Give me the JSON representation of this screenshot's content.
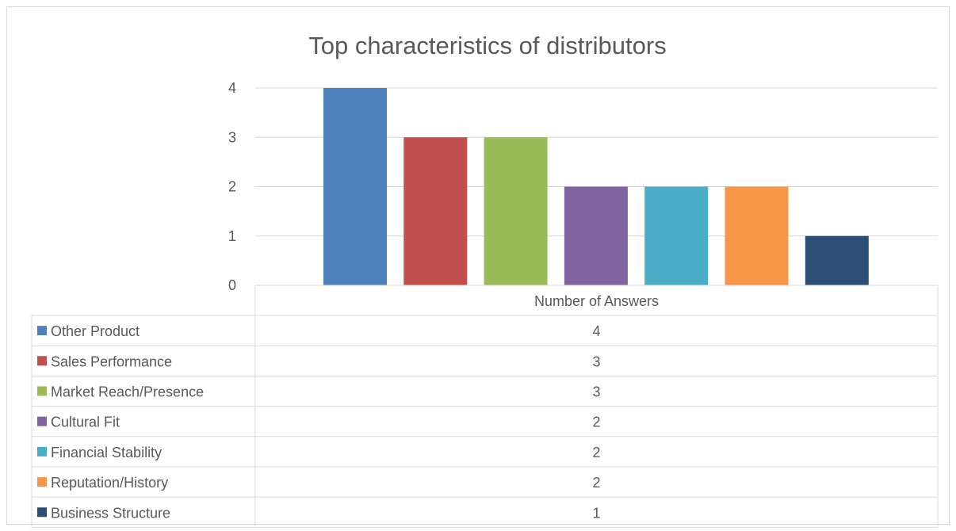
{
  "chart_data": {
    "type": "bar",
    "title": "Top characteristics of distributors",
    "xlabel": "",
    "ylabel": "",
    "ylim": [
      0,
      4
    ],
    "yticks": [
      0,
      1,
      2,
      3,
      4
    ],
    "grid": true,
    "legend": "data-table-below",
    "series_header": "Number of Answers",
    "series": [
      {
        "name": "Other Product",
        "value": 4,
        "color": "#4f81bd"
      },
      {
        "name": "Sales Performance",
        "value": 3,
        "color": "#c0504d"
      },
      {
        "name": "Market Reach/Presence",
        "value": 3,
        "color": "#9bbb59"
      },
      {
        "name": "Cultural Fit",
        "value": 2,
        "color": "#8064a2"
      },
      {
        "name": "Financial Stability",
        "value": 2,
        "color": "#4bacc6"
      },
      {
        "name": "Reputation/History",
        "value": 2,
        "color": "#f79646"
      },
      {
        "name": "Business Structure",
        "value": 1,
        "color": "#2c4d75"
      }
    ]
  }
}
